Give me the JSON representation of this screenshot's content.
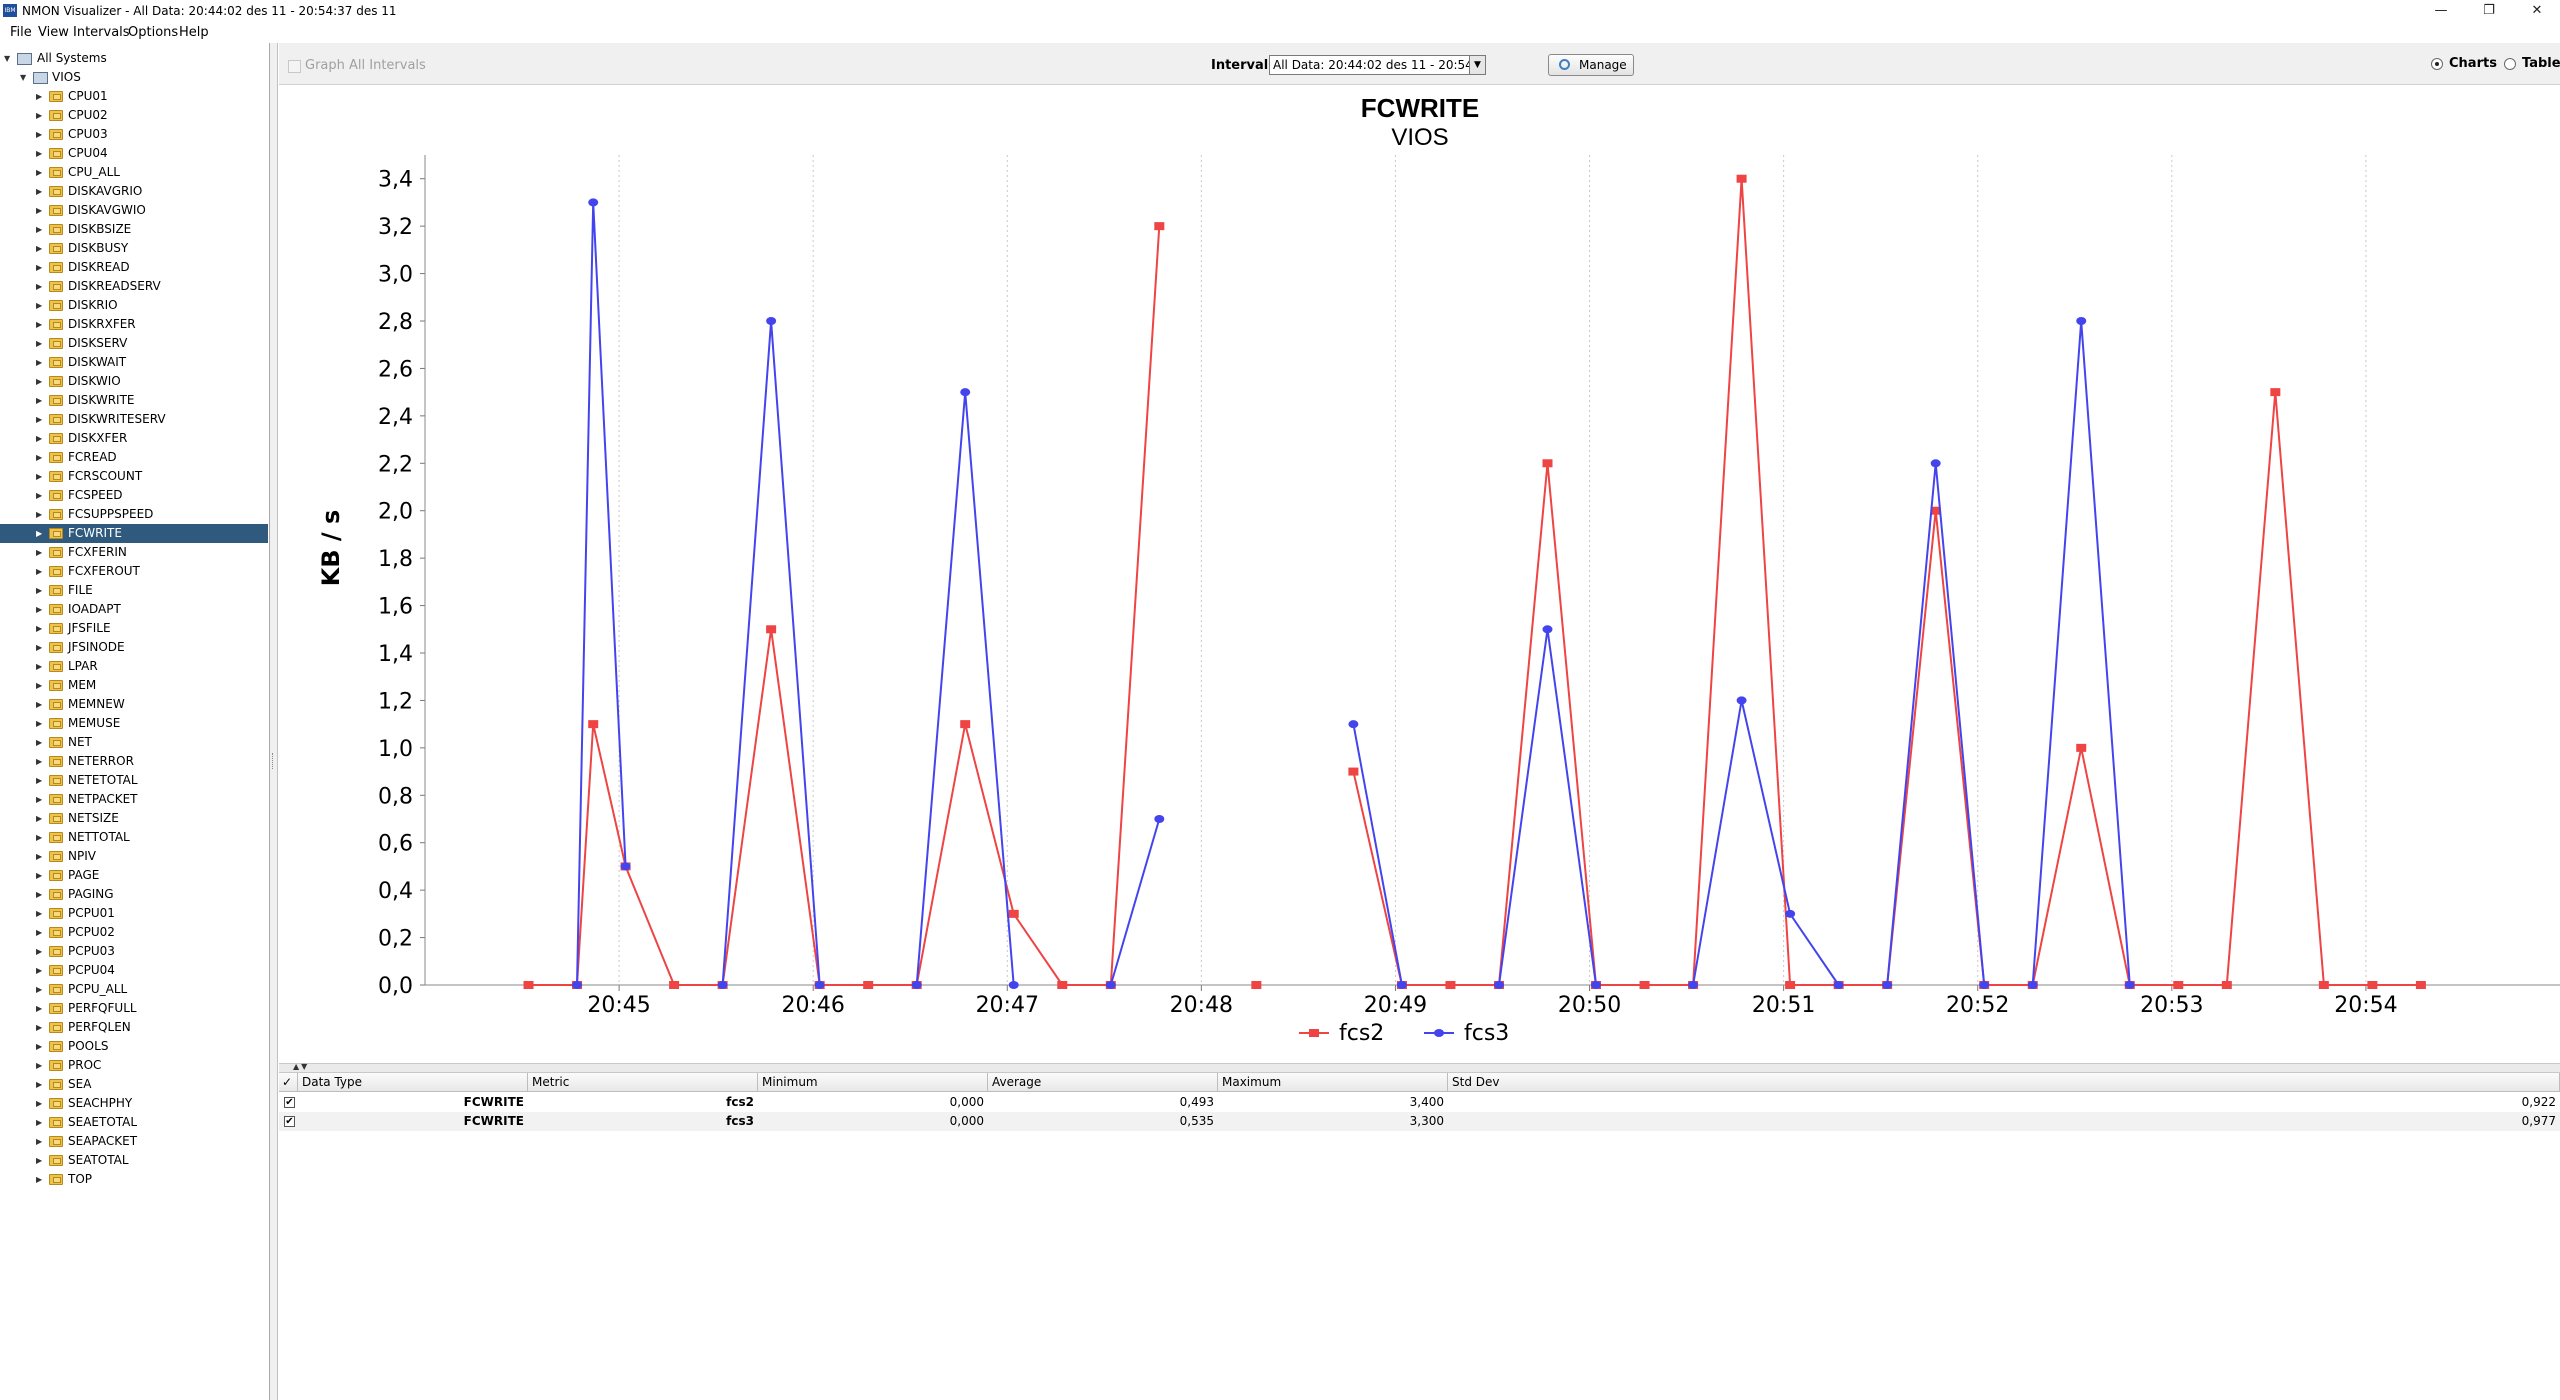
{
  "window": {
    "icon_text": "IBM",
    "title": "NMON Visualizer - All Data: 20:44:02 des 11 - 20:54:37 des 11",
    "minimize": "—",
    "restore": "❐",
    "close": "✕"
  },
  "menu": [
    "File",
    "View",
    "Intervals",
    "Options",
    "Help"
  ],
  "tree": {
    "root": "All Systems",
    "system": "VIOS",
    "selected": "FCWRITE",
    "items": [
      "CPU01",
      "CPU02",
      "CPU03",
      "CPU04",
      "CPU_ALL",
      "DISKAVGRIO",
      "DISKAVGWIO",
      "DISKBSIZE",
      "DISKBUSY",
      "DISKREAD",
      "DISKREADSERV",
      "DISKRIO",
      "DISKRXFER",
      "DISKSERV",
      "DISKWAIT",
      "DISKWIO",
      "DISKWRITE",
      "DISKWRITESERV",
      "DISKXFER",
      "FCREAD",
      "FCRSCOUNT",
      "FCSPEED",
      "FCSUPPSPEED",
      "FCWRITE",
      "FCXFERIN",
      "FCXFEROUT",
      "FILE",
      "IOADAPT",
      "JFSFILE",
      "JFSINODE",
      "LPAR",
      "MEM",
      "MEMNEW",
      "MEMUSE",
      "NET",
      "NETERROR",
      "NETETOTAL",
      "NETPACKET",
      "NETSIZE",
      "NETTOTAL",
      "NPIV",
      "PAGE",
      "PAGING",
      "PCPU01",
      "PCPU02",
      "PCPU03",
      "PCPU04",
      "PCPU_ALL",
      "PERFQFULL",
      "PERFQLEN",
      "POOLS",
      "PROC",
      "SEA",
      "SEACHPHY",
      "SEAETOTAL",
      "SEAPACKET",
      "SEATOTAL",
      "TOP"
    ]
  },
  "toolbar": {
    "graph_all_label": "Graph All Intervals",
    "interval_label": "Interval:",
    "interval_value": "All Data: 20:44:02 des 11 - 20:54:37 des 11",
    "manage_label": "Manage",
    "charts_label": "Charts",
    "table_label": "Table",
    "charts_selected": true
  },
  "chart_data": {
    "type": "line",
    "title": "FCWRITE",
    "subtitle": "VIOS",
    "ylabel": "KB / s",
    "xlabel": "",
    "ylim": [
      0,
      3.5
    ],
    "yticks": [
      "0,0",
      "0,2",
      "0,4",
      "0,6",
      "0,8",
      "1,0",
      "1,2",
      "1,4",
      "1,6",
      "1,8",
      "2,0",
      "2,2",
      "2,4",
      "2,6",
      "2,8",
      "3,0",
      "3,2",
      "3,4"
    ],
    "x_time_start": "20:44",
    "x_time_end": "20:55",
    "xticks": [
      "20:45",
      "20:46",
      "20:47",
      "20:48",
      "20:49",
      "20:50",
      "20:51",
      "20:52",
      "20:53",
      "20:54"
    ],
    "legend_position": "bottom",
    "grid": true,
    "series": [
      {
        "name": "fcs2",
        "color": "#ee4444",
        "marker": "square",
        "points": [
          [
            "20:44:32",
            0.0
          ],
          [
            "20:44:47",
            0.0
          ],
          [
            "20:44:52",
            1.1
          ],
          [
            "20:45:02",
            0.5
          ],
          [
            "20:45:17",
            0.0
          ],
          [
            "20:45:32",
            0.0
          ],
          [
            "20:45:47",
            1.5
          ],
          [
            "20:46:02",
            0.0
          ],
          [
            "20:46:17",
            0.0
          ],
          [
            "20:46:32",
            0.0
          ],
          [
            "20:46:47",
            1.1
          ],
          [
            "20:47:02",
            0.3
          ],
          [
            "20:47:17",
            0.0
          ],
          [
            "20:47:32",
            0.0
          ],
          [
            "20:47:47",
            3.2
          ],
          null,
          [
            "20:48:17",
            0.0
          ],
          null,
          [
            "20:48:47",
            0.9
          ],
          [
            "20:49:02",
            0.0
          ],
          [
            "20:49:17",
            0.0
          ],
          [
            "20:49:32",
            0.0
          ],
          [
            "20:49:47",
            2.2
          ],
          [
            "20:50:02",
            0.0
          ],
          [
            "20:50:17",
            0.0
          ],
          [
            "20:50:32",
            0.0
          ],
          [
            "20:50:47",
            3.4
          ],
          [
            "20:51:02",
            0.0
          ],
          [
            "20:51:17",
            0.0
          ],
          [
            "20:51:32",
            0.0
          ],
          [
            "20:51:47",
            2.0
          ],
          [
            "20:52:02",
            0.0
          ],
          [
            "20:52:17",
            0.0
          ],
          [
            "20:52:32",
            1.0
          ],
          [
            "20:52:47",
            0.0
          ],
          [
            "20:53:02",
            0.0
          ],
          [
            "20:53:17",
            0.0
          ],
          [
            "20:53:32",
            2.5
          ],
          [
            "20:53:47",
            0.0
          ],
          [
            "20:54:02",
            0.0
          ],
          [
            "20:54:17",
            0.0
          ]
        ]
      },
      {
        "name": "fcs3",
        "color": "#4444ee",
        "marker": "circle",
        "points": [
          [
            "20:44:47",
            0.0
          ],
          [
            "20:44:52",
            3.3
          ],
          [
            "20:45:02",
            0.5
          ],
          null,
          [
            "20:45:32",
            0.0
          ],
          [
            "20:45:47",
            2.8
          ],
          [
            "20:46:02",
            0.0
          ],
          null,
          [
            "20:46:32",
            0.0
          ],
          [
            "20:46:47",
            2.5
          ],
          [
            "20:47:02",
            0.0
          ],
          null,
          [
            "20:47:32",
            0.0
          ],
          [
            "20:47:47",
            0.7
          ],
          null,
          [
            "20:48:47",
            1.1
          ],
          [
            "20:49:02",
            0.0
          ],
          null,
          [
            "20:49:32",
            0.0
          ],
          [
            "20:49:47",
            1.5
          ],
          [
            "20:50:02",
            0.0
          ],
          null,
          [
            "20:50:32",
            0.0
          ],
          [
            "20:50:47",
            1.2
          ],
          [
            "20:51:02",
            0.3
          ],
          [
            "20:51:17",
            0.0
          ],
          null,
          [
            "20:51:32",
            0.0
          ],
          [
            "20:51:47",
            2.2
          ],
          [
            "20:52:02",
            0.0
          ],
          null,
          [
            "20:52:17",
            0.0
          ],
          [
            "20:52:32",
            2.8
          ],
          [
            "20:52:47",
            0.0
          ]
        ]
      }
    ]
  },
  "stats_table": {
    "columns": [
      "Data Type",
      "Metric",
      "Minimum",
      "Average",
      "Maximum",
      "Std Dev"
    ],
    "rows": [
      {
        "checked": true,
        "data_type": "FCWRITE",
        "metric": "fcs2",
        "minimum": "0,000",
        "average": "0,493",
        "maximum": "3,400",
        "std_dev": "0,922"
      },
      {
        "checked": true,
        "data_type": "FCWRITE",
        "metric": "fcs3",
        "minimum": "0,000",
        "average": "0,535",
        "maximum": "3,300",
        "std_dev": "0,977"
      }
    ]
  }
}
